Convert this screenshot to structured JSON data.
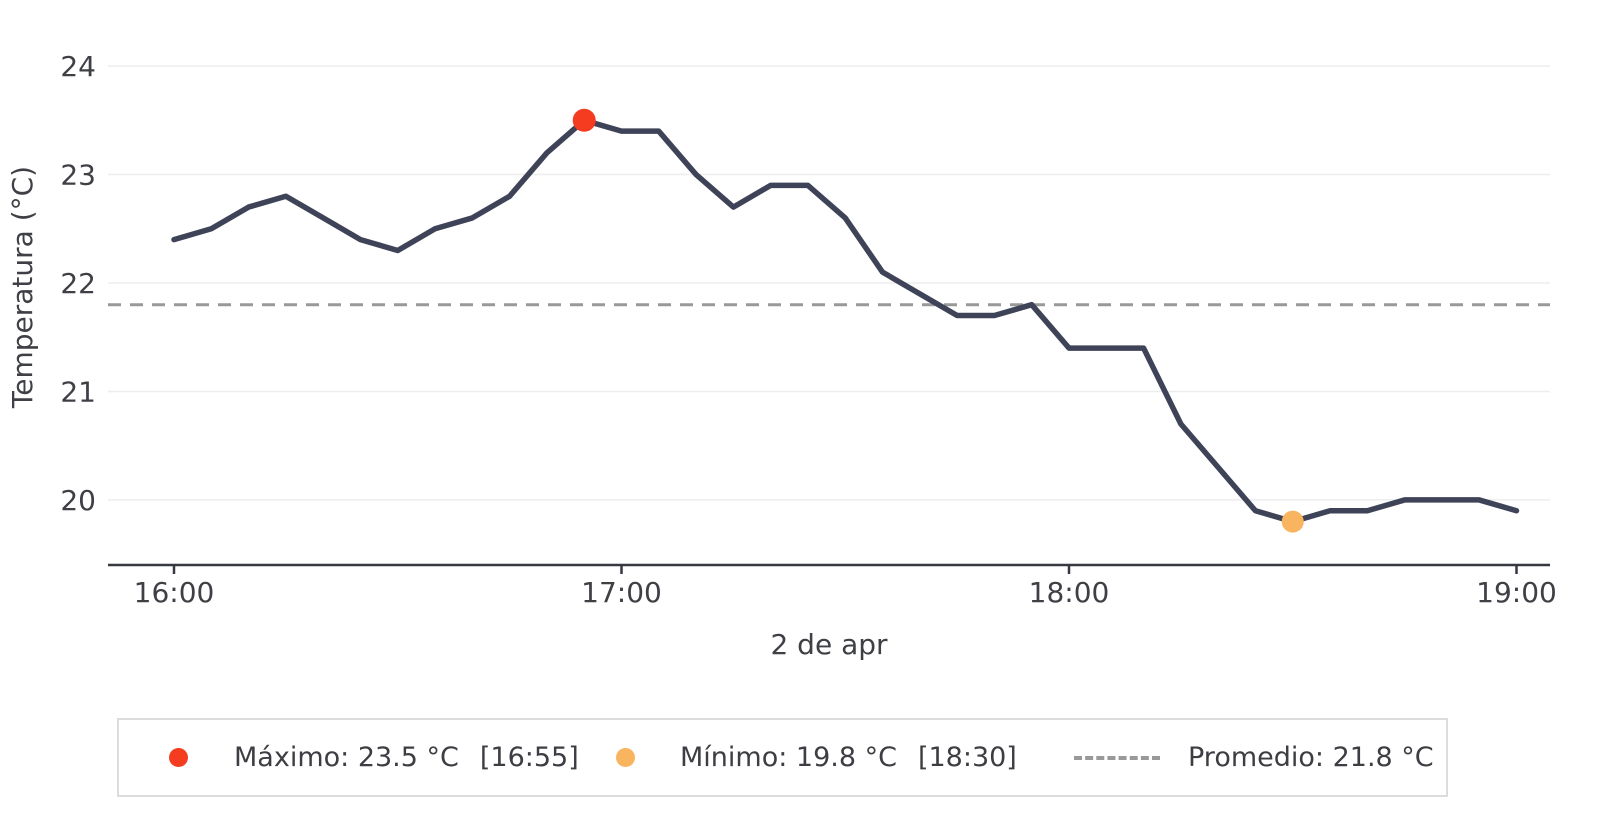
{
  "chart_data": {
    "type": "line",
    "title": "",
    "xlabel": "2 de apr",
    "ylabel": "Temperatura (°C)",
    "x": [
      "16:00",
      "16:05",
      "16:10",
      "16:15",
      "16:20",
      "16:25",
      "16:30",
      "16:35",
      "16:40",
      "16:45",
      "16:50",
      "16:55",
      "17:00",
      "17:05",
      "17:10",
      "17:15",
      "17:20",
      "17:25",
      "17:30",
      "17:35",
      "17:40",
      "17:45",
      "17:50",
      "17:55",
      "18:00",
      "18:05",
      "18:10",
      "18:15",
      "18:20",
      "18:25",
      "18:30",
      "18:35",
      "18:40",
      "18:45",
      "18:50",
      "18:55",
      "19:00"
    ],
    "series": [
      {
        "name": "Temperatura",
        "values": [
          22.4,
          22.5,
          22.7,
          22.8,
          22.6,
          22.4,
          22.3,
          22.5,
          22.6,
          22.8,
          23.2,
          23.5,
          23.4,
          23.4,
          23.0,
          22.7,
          22.9,
          22.9,
          22.6,
          22.1,
          21.9,
          21.7,
          21.7,
          21.8,
          21.4,
          21.4,
          21.4,
          20.7,
          20.3,
          19.9,
          19.8,
          19.9,
          19.9,
          20.0,
          20.0,
          20.0,
          19.9
        ]
      }
    ],
    "x_tick_labels": [
      "16:00",
      "17:00",
      "18:00",
      "19:00"
    ],
    "y_tick_labels": [
      "20",
      "21",
      "22",
      "23",
      "24"
    ],
    "y_tick_values": [
      20,
      21,
      22,
      23,
      24
    ],
    "ylim": [
      19.4,
      24.6
    ],
    "grid": true,
    "legend_position": "bottom",
    "line_color": "#3e4358",
    "max_point": {
      "value": 23.5,
      "time": "16:55",
      "index": 11,
      "color": "#f53b20"
    },
    "min_point": {
      "value": 19.8,
      "time": "18:30",
      "index": 30,
      "color": "#f9b45f"
    },
    "average_line": {
      "value": 21.8,
      "color": "#999999",
      "style": "dashed"
    }
  },
  "legend": {
    "max_label": "Máximo: 23.5 °C",
    "max_time": "[16:55]",
    "min_label": "Mínimo: 19.8 °C",
    "min_time": "[18:30]",
    "avg_label": "Promedio: 21.8 °C"
  }
}
